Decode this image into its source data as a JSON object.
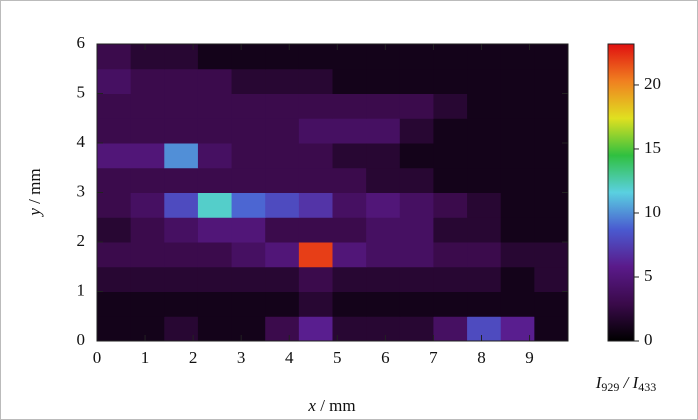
{
  "chart_data": {
    "type": "heatmap",
    "x_label": "x / mm",
    "y_label": "y / mm",
    "colorbar_label": "I929 / I433",
    "x": [
      0,
      0.7,
      1.4,
      2.1,
      2.8,
      3.5,
      4.2,
      4.9,
      5.6,
      6.3,
      7.0,
      7.7,
      8.4,
      9.1,
      9.8
    ],
    "y": [
      0,
      0.5,
      1.0,
      1.5,
      2.0,
      2.5,
      3.0,
      3.5,
      4.0,
      4.5,
      5.0,
      5.5,
      6.0
    ],
    "z": [
      [
        1,
        1,
        2,
        1,
        1,
        3,
        6,
        2,
        2,
        2,
        4,
        8,
        6,
        1
      ],
      [
        1,
        1,
        1,
        1,
        1,
        1,
        2,
        1,
        1,
        1,
        1,
        1,
        1,
        1
      ],
      [
        2,
        2,
        2,
        2,
        2,
        2,
        3,
        2,
        2,
        2,
        2,
        2,
        1,
        2
      ],
      [
        3,
        3,
        3,
        3,
        4,
        5,
        22,
        5,
        4,
        4,
        3,
        3,
        2,
        2
      ],
      [
        2,
        3,
        4,
        5,
        5,
        3,
        3,
        3,
        4,
        4,
        2,
        2,
        1,
        1
      ],
      [
        3,
        4,
        8,
        12,
        9,
        8,
        7,
        4,
        5,
        4,
        3,
        2,
        1,
        1
      ],
      [
        3,
        3,
        3,
        3,
        3,
        3,
        3,
        3,
        2,
        2,
        1,
        1,
        1,
        1
      ],
      [
        5,
        5,
        10,
        4,
        3,
        3,
        3,
        2,
        2,
        1,
        1,
        1,
        1,
        1
      ],
      [
        3,
        3,
        3,
        3,
        3,
        3,
        4,
        4,
        4,
        2,
        1,
        1,
        1,
        1
      ],
      [
        3,
        3,
        3,
        3,
        3,
        3,
        3,
        3,
        3,
        3,
        2,
        1,
        1,
        1
      ],
      [
        4,
        3,
        3,
        3,
        2,
        2,
        2,
        1,
        1,
        1,
        1,
        1,
        1,
        1
      ],
      [
        3,
        2,
        2,
        1,
        1,
        1,
        1,
        1,
        1,
        1,
        1,
        1,
        1,
        1
      ]
    ],
    "xlim": [
      0,
      9.8
    ],
    "ylim": [
      0,
      6
    ],
    "xticks": [
      0,
      1,
      2,
      3,
      4,
      5,
      6,
      7,
      8,
      9
    ],
    "yticks": [
      0,
      1,
      2,
      3,
      4,
      5,
      6
    ],
    "zlim": [
      0,
      23.2
    ],
    "zticks": [
      0,
      5,
      10,
      15,
      20
    ],
    "colormap": [
      "#000000",
      "#3a0a4a",
      "#5a1a8a",
      "#4a5ad0",
      "#5ad0e0",
      "#30c040",
      "#e0e020",
      "#f08020",
      "#e01010"
    ]
  }
}
